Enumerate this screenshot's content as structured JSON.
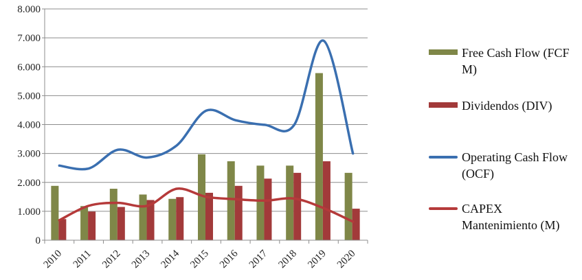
{
  "chart_data": {
    "type": "bar",
    "title": "",
    "xlabel": "",
    "ylabel": "",
    "ylim": [
      0,
      8000
    ],
    "yticks": [
      "0",
      "1.000",
      "2.000",
      "3.000",
      "4.000",
      "5.000",
      "6.000",
      "7.000",
      "8.000"
    ],
    "ytick_values": [
      0,
      1000,
      2000,
      3000,
      4000,
      5000,
      6000,
      7000,
      8000
    ],
    "categories": [
      "2010",
      "2011",
      "2012",
      "2013",
      "2014",
      "2015",
      "2016",
      "2017",
      "2018",
      "2019",
      "2020"
    ],
    "grid": true,
    "legend_position": "right",
    "bar_series": [
      {
        "name": "Free Cash Flow (FCF M)",
        "color": "#7f8748",
        "values": [
          1880,
          1180,
          1780,
          1580,
          1430,
          2970,
          2730,
          2580,
          2580,
          5780,
          2330
        ]
      },
      {
        "name": "Dividendos (DIV)",
        "color": "#a23a3a",
        "values": [
          730,
          990,
          1150,
          1390,
          1490,
          1640,
          1880,
          2130,
          2330,
          2730,
          1090
        ]
      }
    ],
    "line_series": [
      {
        "name": "Operating Cash Flow (OCF)",
        "color": "#3a6fb0",
        "values": [
          2580,
          2480,
          3130,
          2860,
          3280,
          4480,
          4150,
          3990,
          3990,
          6900,
          3000
        ]
      },
      {
        "name": "CAPEX Mantenimiento (M)",
        "color": "#b53a3a",
        "values": [
          690,
          1190,
          1290,
          1190,
          1780,
          1500,
          1420,
          1370,
          1440,
          1110,
          640
        ]
      }
    ]
  },
  "legend": {
    "fcf": "Free Cash Flow (FCF M)",
    "div": "Dividendos (DIV)",
    "ocf": "Operating Cash Flow (OCF)",
    "capex": "CAPEX Mantenimiento (M)"
  }
}
